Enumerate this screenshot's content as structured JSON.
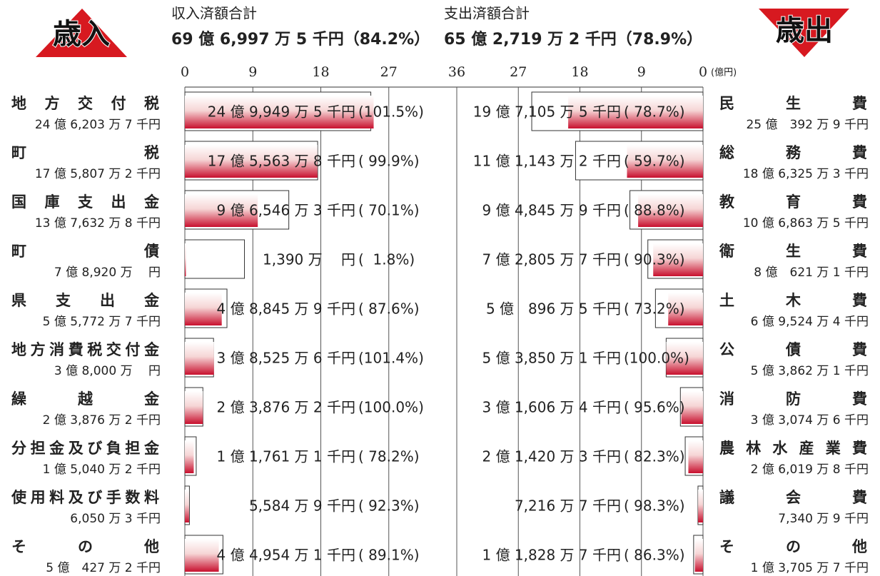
{
  "chart_data": {
    "type": "butterfly",
    "units": "(億円)",
    "xlim": [
      0,
      36
    ],
    "left": {
      "title": "歳入",
      "total_label": "収入済額合計",
      "total": "69 億 6,997 万 5 千円（84.2%）",
      "xticks": [
        0,
        9,
        18,
        27,
        36
      ],
      "categories": [
        "地方交付税",
        "町税",
        "国庫支出金",
        "町債",
        "県支出金",
        "地方消費税交付金",
        "繰越金",
        "分担金及び負担金",
        "使用料及び手数料",
        "その他"
      ],
      "budget": {
        "color": "#ffffff",
        "values": [
          24.62037,
          17.58072,
          13.76328,
          7.892,
          5.57727,
          3.8,
          2.38762,
          1.50402,
          0.60503,
          5.04272
        ],
        "value_labels": [
          "24 億 6,203 万 7 千円",
          "17 億 5,807 万 2 千円",
          "13 億 7,632 万 8 千円",
          "7 億 8,920 万　 円",
          "5 億 5,772 万 7 千円",
          "3 億 8,000 万　 円",
          "2 億 3,876 万 2 千円",
          "1 億 5,040 万 2 千円",
          "6,050 万 3 千円",
          "5 億　427 万 2 千円"
        ]
      },
      "actual": {
        "color": "#c8102e",
        "values": [
          24.99495,
          17.55638,
          9.65463,
          0.139,
          4.88459,
          3.85256,
          2.38762,
          1.17611,
          0.55849,
          4.49541
        ],
        "value_labels": [
          "24 億 9,949 万 5 千円",
          "17 億 5,563 万 8 千円",
          "9 億 6,546 万 3 千円",
          "1,390 万　 円",
          "4 億 8,845 万 9 千円",
          "3 億 8,525 万 6 千円",
          "2 億 3,876 万 2 千円",
          "1 億 1,761 万 1 千円",
          "5,584 万 9 千円",
          "4 億 4,954 万 1 千円"
        ]
      },
      "rate_labels": [
        "(101.5%)",
        "( 99.9%)",
        "( 70.1%)",
        "(  1.8%)",
        "( 87.6%)",
        "(101.4%)",
        "(100.0%)",
        "( 78.2%)",
        "( 92.3%)",
        "( 89.1%)"
      ]
    },
    "right": {
      "title": "歳出",
      "total_label": "支出済額合計",
      "total": "65 億 2,719 万 2 千円（78.9%）",
      "xticks": [
        0,
        9,
        18,
        27
      ],
      "categories": [
        "民生費",
        "総務費",
        "教育費",
        "衛生費",
        "土木費",
        "公債費",
        "消防費",
        "農林水産業費",
        "議会費",
        "その他"
      ],
      "budget": {
        "color": "#ffffff",
        "values": [
          25.03929,
          18.63253,
          10.68635,
          8.06211,
          6.95244,
          5.38621,
          3.30746,
          2.60198,
          0.73409,
          1.37057
        ],
        "value_labels": [
          "25 億　392 万 9 千円",
          "18 億 6,325 万 3 千円",
          "10 億 6,863 万 5 千円",
          "8 億　621 万 1 千円",
          "6 億 9,524 万 4 千円",
          "5 億 3,862 万 1 千円",
          "3 億 3,074 万 6 千円",
          "2 億 6,019 万 8 千円",
          "7,340 万 9 千円",
          "1 億 3,705 万 7 千円"
        ]
      },
      "actual": {
        "color": "#c8102e",
        "values": [
          19.71055,
          11.11432,
          9.48459,
          7.28057,
          5.08965,
          5.38501,
          3.16064,
          2.14203,
          0.72167,
          1.18287
        ],
        "value_labels": [
          "19 億 7,105 万 5 千円",
          "11 億 1,143 万 2 千円",
          "9 億 4,845 万 9 千円",
          "7 億 2,805 万 7 千円",
          "5 億　896 万 5 千円",
          "5 億 3,850 万 1 千円",
          "3 億 1,606 万 4 千円",
          "2 億 1,420 万 3 千円",
          "7,216 万 7 千円",
          "1 億 1,828 万 7 千円"
        ]
      },
      "rate_labels": [
        "( 78.7%)",
        "( 59.7%)",
        "( 88.8%)",
        "( 90.3%)",
        "( 73.2%)",
        "(100.0%)",
        "( 95.6%)",
        "( 82.3%)",
        "( 98.3%)",
        "( 86.3%)"
      ]
    }
  }
}
